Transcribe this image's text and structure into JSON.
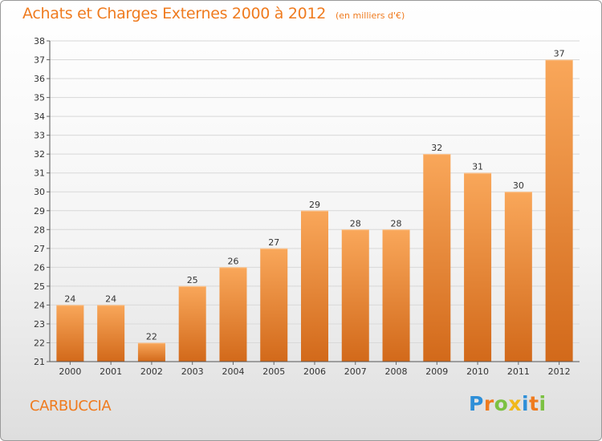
{
  "title": "Achats et Charges Externes 2000 à 2012",
  "unit_note": "(en milliers d'€)",
  "commune": "CARBUCCIA",
  "logo": {
    "text": "Proxiti",
    "letters": [
      {
        "ch": "P",
        "color": "#2e8fd8"
      },
      {
        "ch": "r",
        "color": "#ef7b1f"
      },
      {
        "ch": "o",
        "color": "#7cc142"
      },
      {
        "ch": "x",
        "color": "#f0b81a"
      },
      {
        "ch": "i",
        "color": "#2e8fd8"
      },
      {
        "ch": "t",
        "color": "#ef7b1f"
      },
      {
        "ch": "i",
        "color": "#7cc142"
      }
    ]
  },
  "colors": {
    "accent": "#ef7b1f",
    "bar_light": "#f9a75a",
    "bar_dark": "#d2691a",
    "grid": "#d8d8d8",
    "axis_text": "#333333"
  },
  "chart_data": {
    "type": "bar",
    "categories": [
      "2000",
      "2001",
      "2002",
      "2003",
      "2004",
      "2005",
      "2006",
      "2007",
      "2008",
      "2009",
      "2010",
      "2011",
      "2012"
    ],
    "values": [
      24,
      24,
      22,
      25,
      26,
      27,
      29,
      28,
      28,
      32,
      31,
      30,
      37
    ],
    "ylim": [
      21,
      38
    ],
    "yticks": [
      21,
      22,
      23,
      24,
      25,
      26,
      27,
      28,
      29,
      30,
      31,
      32,
      33,
      34,
      35,
      36,
      37,
      38
    ],
    "grid": true,
    "title": "Achats et Charges Externes 2000 à 2012",
    "xlabel": "",
    "ylabel": ""
  }
}
